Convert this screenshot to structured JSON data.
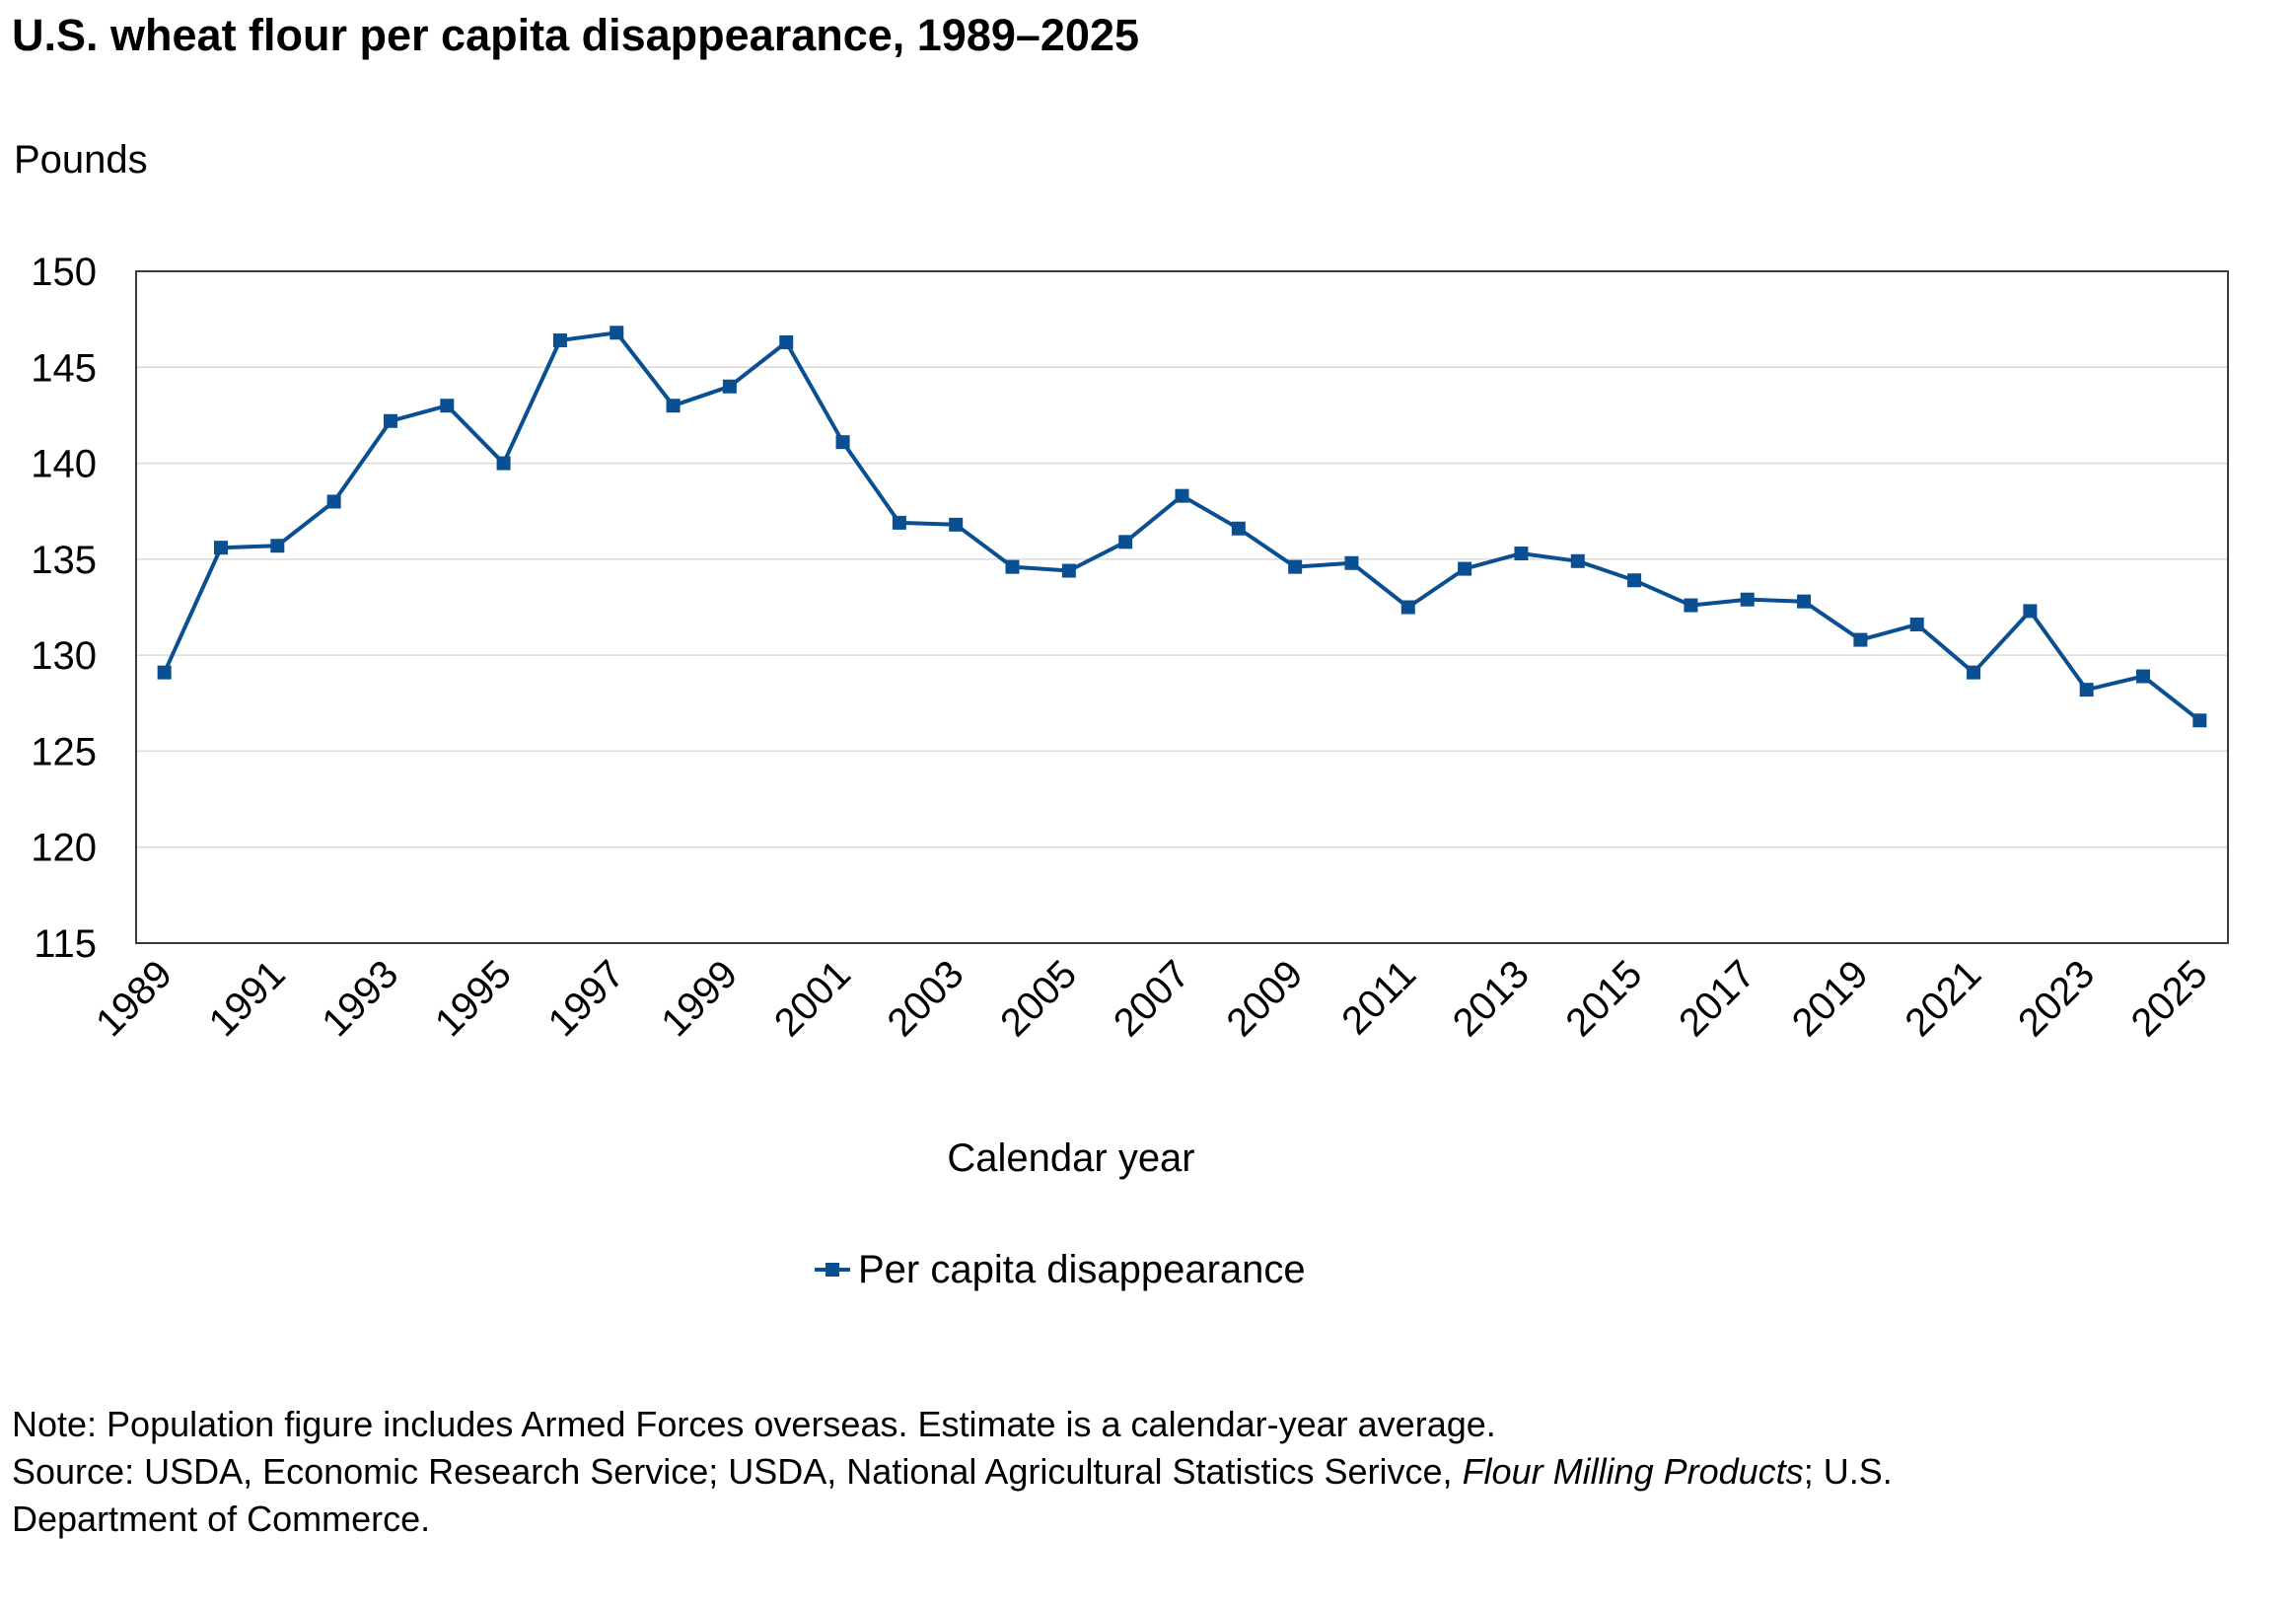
{
  "chart_data": {
    "type": "line",
    "title": "U.S. wheat flour per capita disappearance, 1989–2025",
    "ylabel": "Pounds",
    "xlabel": "Calendar year",
    "ylim": [
      115,
      150
    ],
    "yticks": [
      115,
      120,
      125,
      130,
      135,
      140,
      145,
      150
    ],
    "xticks": [
      "1989",
      "1991",
      "1993",
      "1995",
      "1997",
      "1999",
      "2001",
      "2003",
      "2005",
      "2007",
      "2009",
      "2011",
      "2013",
      "2015",
      "2017",
      "2019",
      "2021",
      "2023",
      "2025"
    ],
    "grid": true,
    "legend_position": "bottom",
    "series": [
      {
        "name": "Per capita disappearance",
        "color": "#0a4f91",
        "marker": "square",
        "x": [
          1989,
          1990,
          1991,
          1992,
          1993,
          1994,
          1995,
          1996,
          1997,
          1998,
          1999,
          2000,
          2001,
          2002,
          2003,
          2004,
          2005,
          2006,
          2007,
          2008,
          2009,
          2010,
          2011,
          2012,
          2013,
          2014,
          2015,
          2016,
          2017,
          2018,
          2019,
          2020,
          2021,
          2022,
          2023,
          2024,
          2025
        ],
        "values": [
          129.1,
          135.6,
          135.7,
          138.0,
          142.2,
          143.0,
          140.0,
          146.4,
          146.8,
          143.0,
          144.0,
          146.3,
          141.1,
          136.9,
          136.8,
          134.6,
          134.4,
          135.9,
          138.3,
          136.6,
          134.6,
          134.8,
          132.5,
          134.5,
          135.3,
          134.9,
          133.9,
          132.6,
          132.9,
          132.8,
          130.8,
          131.6,
          129.1,
          132.3,
          128.2,
          128.9,
          126.6
        ]
      }
    ]
  },
  "notes": {
    "line1": "Note: Population figure includes Armed Forces overseas. Estimate is a calendar-year average.",
    "line2_prefix": "Source: USDA, Economic Research Service; USDA, National Agricultural Statistics Serivce, ",
    "line2_italic": "Flour Milling Products",
    "line2_suffix": "; U.S.",
    "line3": "Department of Commerce."
  }
}
